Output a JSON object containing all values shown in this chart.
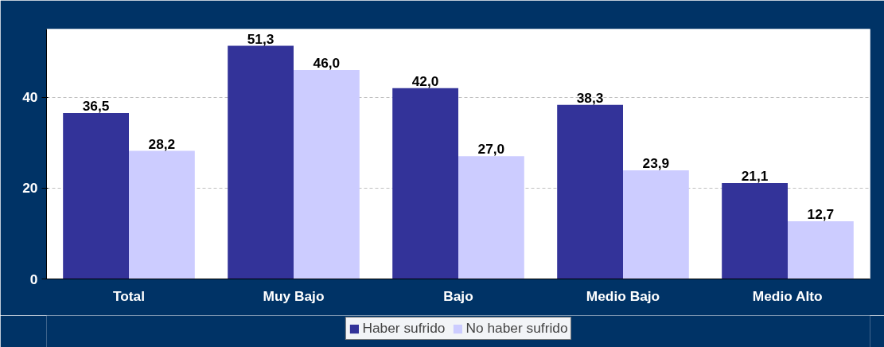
{
  "chart_data": {
    "type": "bar",
    "categories": [
      "Total",
      "Muy Bajo",
      "Bajo",
      "Medio Bajo",
      "Medio Alto"
    ],
    "series": [
      {
        "name": "Haber sufrido",
        "color": "#333399",
        "values": [
          36.5,
          51.3,
          42.0,
          38.3,
          21.1
        ]
      },
      {
        "name": "No haber sufrido",
        "color": "#ccccff",
        "values": [
          28.2,
          46.0,
          27.0,
          23.9,
          12.7
        ]
      }
    ],
    "value_labels": [
      [
        "36,5",
        "51,3",
        "42,0",
        "38,3",
        "21,1"
      ],
      [
        "28,2",
        "46,0",
        "27,0",
        "23,9",
        "12,7"
      ]
    ],
    "ylim": [
      0,
      55
    ],
    "yticks": [
      0,
      20,
      40
    ],
    "grid": "y",
    "legend": "bottom"
  }
}
